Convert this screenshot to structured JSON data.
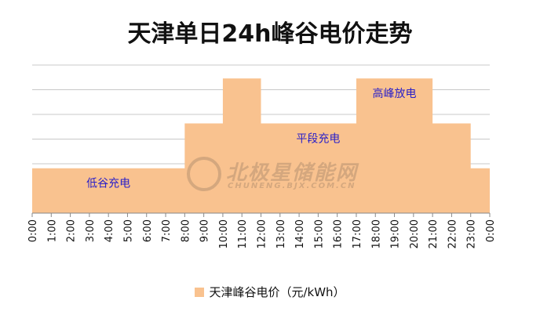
{
  "chart_data": {
    "type": "area",
    "title": "天津单日24h峰谷电价走势",
    "xlabel": "",
    "ylabel": "",
    "categories": [
      "0:00",
      "1:00",
      "2:00",
      "3:00",
      "4:00",
      "5:00",
      "6:00",
      "7:00",
      "8:00",
      "9:00",
      "10:00",
      "11:00",
      "12:00",
      "13:00",
      "14:00",
      "15:00",
      "16:00",
      "17:00",
      "18:00",
      "19:00",
      "20:00",
      "21:00",
      "22:00",
      "23:00",
      "0:00"
    ],
    "series": [
      {
        "name": "天津峰谷电价（元/kWh）",
        "values": [
          1,
          1,
          1,
          1,
          1,
          1,
          1,
          1,
          2,
          2,
          3,
          3,
          2,
          2,
          2,
          2,
          2,
          3,
          3,
          3,
          3,
          2,
          2,
          1,
          1
        ],
        "color": "#f9c28f"
      }
    ],
    "ylim": [
      0,
      3.3
    ],
    "gridlines": 6,
    "grid": true,
    "legend_position": "bottom",
    "annotations": [
      {
        "text": "低谷充电",
        "category_index": 4
      },
      {
        "text": "平段充电",
        "category_index": 15
      },
      {
        "text": "高峰放电",
        "category_index": 19
      }
    ]
  },
  "watermark": {
    "text": "北极星储能网",
    "subtext": "CHUNENG.BJX.COM.CN"
  }
}
